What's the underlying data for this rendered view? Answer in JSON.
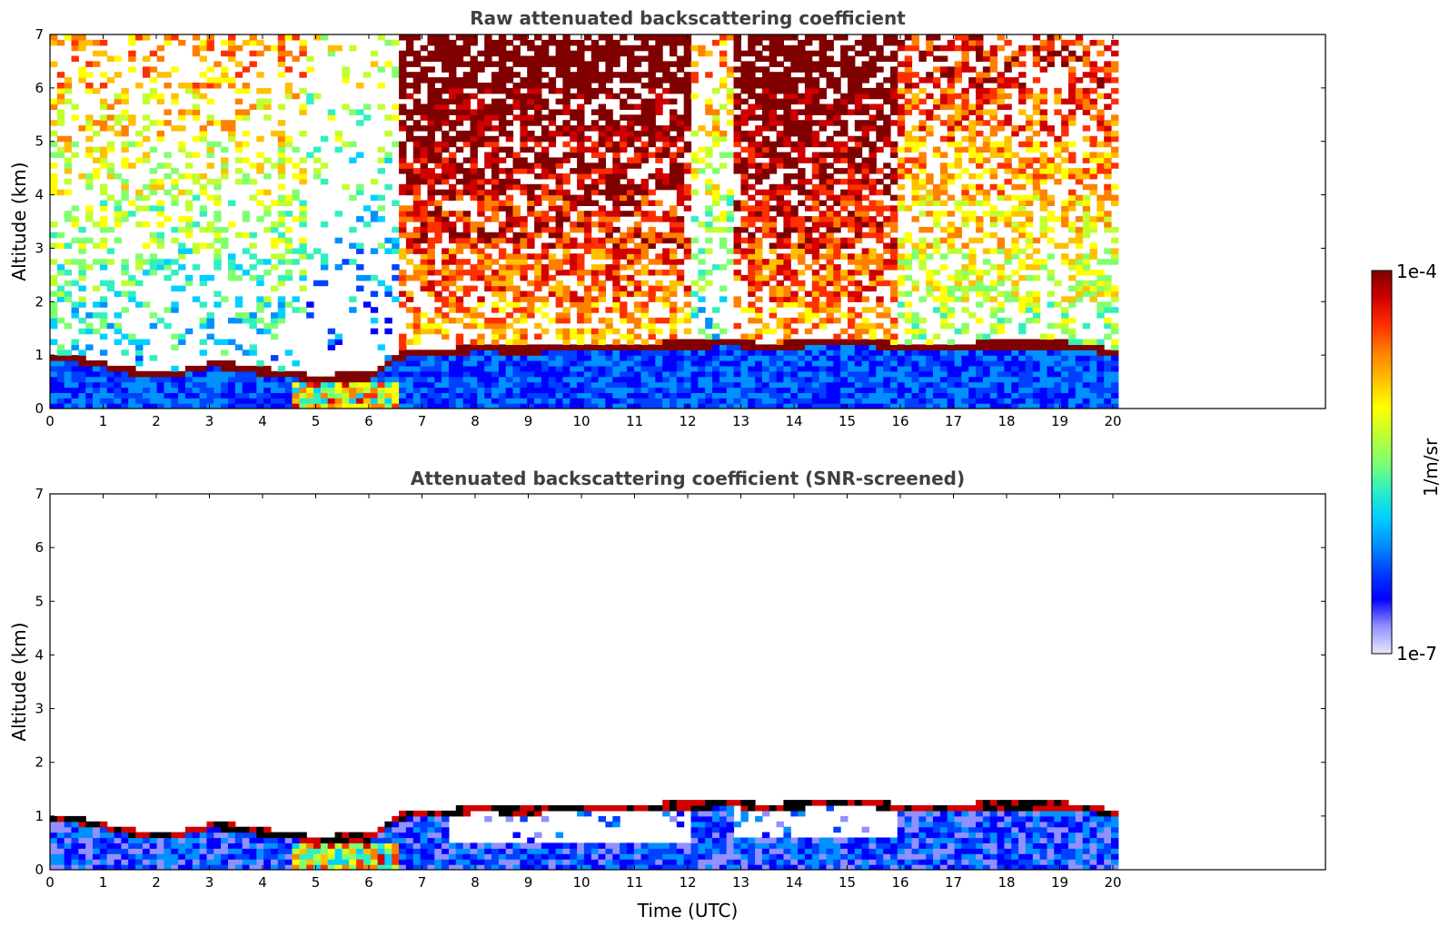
{
  "chart_data": [
    {
      "type": "heatmap",
      "title": "Raw attenuated backscattering coefficient",
      "xlabel": "",
      "ylabel": "Altitude (km)",
      "xlim": [
        0,
        24
      ],
      "ylim": [
        0,
        7
      ],
      "xticks": [
        "0",
        "1",
        "2",
        "3",
        "4",
        "5",
        "6",
        "7",
        "8",
        "9",
        "10",
        "11",
        "12",
        "13",
        "14",
        "15",
        "16",
        "17",
        "18",
        "19",
        "20"
      ],
      "yticks": [
        "0",
        "1",
        "2",
        "3",
        "4",
        "5",
        "6",
        "7"
      ],
      "data_end_time": 20.1,
      "cloud_layer": {
        "x": [
          0.0,
          0.3,
          2.0,
          2.5,
          3.0,
          3.5,
          4.0,
          4.5,
          5.0,
          5.5,
          6.0,
          6.6,
          7.0,
          8.0,
          9.0,
          10.0,
          11.0,
          12.0,
          12.8,
          13.5,
          14.0,
          15.0,
          15.9,
          19.0,
          19.5,
          20.0
        ],
        "y": [
          0.98,
          0.95,
          0.62,
          0.68,
          0.82,
          0.8,
          0.7,
          0.65,
          0.55,
          0.6,
          0.6,
          1.0,
          1.05,
          1.12,
          1.1,
          1.15,
          1.18,
          1.2,
          1.22,
          1.18,
          1.2,
          1.25,
          1.18,
          1.2,
          1.15,
          1.05
        ]
      },
      "regimes": [
        {
          "start": 0.0,
          "end": 4.8,
          "noise_level": "low"
        },
        {
          "start": 4.8,
          "end": 6.6,
          "noise_level": "very-low"
        },
        {
          "start": 6.6,
          "end": 12.0,
          "noise_level": "high"
        },
        {
          "start": 12.0,
          "end": 12.8,
          "noise_level": "low"
        },
        {
          "start": 12.8,
          "end": 15.9,
          "noise_level": "high"
        },
        {
          "start": 15.9,
          "end": 20.1,
          "noise_level": "medium"
        }
      ],
      "grid": false
    },
    {
      "type": "heatmap",
      "title": "Attenuated backscattering coefficient (SNR-screened)",
      "xlabel": "Time (UTC)",
      "ylabel": "Altitude (km)",
      "xlim": [
        0,
        24
      ],
      "ylim": [
        0,
        7
      ],
      "xticks": [
        "0",
        "1",
        "2",
        "3",
        "4",
        "5",
        "6",
        "7",
        "8",
        "9",
        "10",
        "11",
        "12",
        "13",
        "14",
        "15",
        "16",
        "17",
        "18",
        "19",
        "20"
      ],
      "yticks": [
        "0",
        "1",
        "2",
        "3",
        "4",
        "5",
        "6",
        "7"
      ],
      "data_end_time": 20.1,
      "grid": false
    }
  ],
  "colorbar": {
    "label": "1/m/sr",
    "max_label": "1e-4",
    "min_label": "1e-7",
    "colormap": [
      "#e8e8ff",
      "#9090ff",
      "#0000ff",
      "#0040ff",
      "#0090ff",
      "#00d0ff",
      "#30f0c0",
      "#80ff70",
      "#c0ff30",
      "#ffff00",
      "#ffc000",
      "#ff8000",
      "#ff3000",
      "#d00000",
      "#800000"
    ]
  }
}
